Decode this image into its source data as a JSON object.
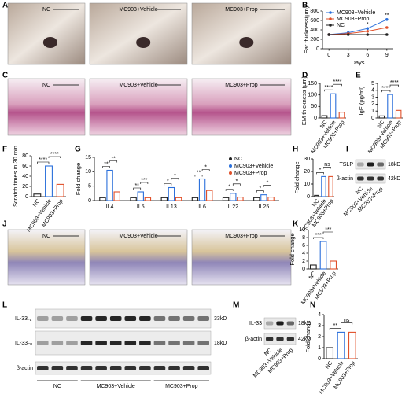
{
  "panel_labels": [
    "A",
    "B",
    "C",
    "D",
    "E",
    "F",
    "G",
    "H",
    "I",
    "J",
    "K",
    "L",
    "M",
    "N"
  ],
  "image_panels": [
    {
      "labels": [
        "NC",
        "MC903+Vehicle",
        "MC903+Prop"
      ]
    },
    {
      "labels": [
        "NC",
        "MC903+Vehicle",
        "MC903+Prop"
      ]
    },
    {
      "labels": [
        "NC",
        "MC903+Vehicle",
        "MC903+Prop"
      ]
    }
  ],
  "chart_data": [
    {
      "type": "line",
      "y_label": "Ear thickness(μm)",
      "x_label": "Days",
      "x": [
        0,
        3,
        6,
        9
      ],
      "xlim": [
        -1,
        10
      ],
      "xticks": [
        0,
        3,
        6,
        9
      ],
      "ylim": [
        0,
        800
      ],
      "yticks": [
        0,
        200,
        400,
        600,
        800
      ],
      "series": [
        {
          "name": "MC903+Vehicle",
          "color": "#2a6fdb",
          "values": [
            300,
            340,
            430,
            620
          ]
        },
        {
          "name": "MC903+Prop",
          "color": "#e0502a",
          "values": [
            300,
            320,
            370,
            450
          ]
        },
        {
          "name": "NC",
          "color": "#222222",
          "values": [
            300,
            300,
            300,
            300
          ]
        }
      ],
      "annotations": [
        {
          "text": "*",
          "x": 6
        },
        {
          "text": "**",
          "x": 9
        }
      ]
    },
    {
      "type": "bar",
      "y_label": "EM thickness (μm)",
      "categories": [
        "NC",
        "MC903+Vehicle",
        "MC903+Prop"
      ],
      "values": [
        10,
        105,
        25
      ],
      "colors": [
        "#222222",
        "#2a6fdb",
        "#e0502a"
      ],
      "ylim": [
        0,
        150
      ],
      "yticks": [
        0,
        50,
        100,
        150
      ],
      "significance": [
        "****",
        "****"
      ]
    },
    {
      "type": "bar",
      "y_label": "IgE (μg/ml)",
      "categories": [
        "NC",
        "MC903+Vehicle",
        "MC903+Prop"
      ],
      "values": [
        0.3,
        3.4,
        1.1
      ],
      "colors": [
        "#222222",
        "#2a6fdb",
        "#e0502a"
      ],
      "ylim": [
        0,
        5
      ],
      "yticks": [
        0,
        1,
        2,
        3,
        4,
        5
      ],
      "significance": [
        "****",
        "****"
      ]
    },
    {
      "type": "bar",
      "y_label": "Scratch times in 30 min",
      "categories": [
        "NC",
        "MC903+Vehicle",
        "MC903+Prop"
      ],
      "values": [
        5,
        60,
        24
      ],
      "colors": [
        "#222222",
        "#2a6fdb",
        "#e0502a"
      ],
      "ylim": [
        0,
        80
      ],
      "yticks": [
        0,
        20,
        40,
        60,
        80
      ],
      "significance": [
        "****",
        "****"
      ]
    },
    {
      "type": "grouped_bar",
      "y_label": "Fold change",
      "categories": [
        "IL4",
        "IL5",
        "IL13",
        "IL6",
        "IL22",
        "IL25"
      ],
      "series": [
        {
          "name": "NC",
          "color": "#222222",
          "values": [
            1,
            1,
            1,
            1,
            1,
            1
          ]
        },
        {
          "name": "MC903+Vehicle",
          "color": "#2a6fdb",
          "values": [
            10.5,
            3,
            4.5,
            7.5,
            2.5,
            2
          ]
        },
        {
          "name": "MC903+Prop",
          "color": "#e0502a",
          "values": [
            3,
            1,
            1,
            3.5,
            1.2,
            1.2
          ]
        }
      ],
      "ylim": [
        0,
        15
      ],
      "yticks": [
        0,
        5,
        10,
        15
      ],
      "significance": [
        [
          "**",
          "**"
        ],
        [
          "**",
          "***"
        ],
        [
          "*",
          "*"
        ],
        [
          "**",
          "*"
        ],
        [
          "*",
          "*"
        ],
        [
          "*",
          "*"
        ]
      ]
    },
    {
      "type": "bar",
      "y_label": "Fold change",
      "categories": [
        "NC",
        "MC903+Vehicle",
        "MC903+Prop"
      ],
      "values": [
        1,
        16,
        16
      ],
      "colors": [
        "#222222",
        "#2a6fdb",
        "#e0502a"
      ],
      "ylim": [
        0,
        30
      ],
      "yticks": [
        0,
        10,
        20,
        30
      ],
      "significance": [
        "*",
        "ns"
      ]
    },
    {
      "type": "bar",
      "y_label": "Fold change",
      "categories": [
        "NC",
        "MC903+Vehicle",
        "MC903+Prop"
      ],
      "values": [
        1,
        7,
        2
      ],
      "colors": [
        "#222222",
        "#2a6fdb",
        "#e0502a"
      ],
      "ylim": [
        0,
        10
      ],
      "yticks": [
        0,
        2,
        4,
        6,
        8,
        10
      ],
      "significance": [
        "***",
        "***"
      ]
    },
    {
      "type": "bar",
      "y_label": "Fold change",
      "categories": [
        "NC",
        "MC903+Vehicle",
        "MC903+Prop"
      ],
      "values": [
        1,
        2.4,
        2.4
      ],
      "colors": [
        "#222222",
        "#2a6fdb",
        "#e0502a"
      ],
      "ylim": [
        0,
        4
      ],
      "yticks": [
        0,
        1,
        2,
        3,
        4
      ],
      "significance": [
        "**",
        "ns"
      ]
    }
  ],
  "blots": [
    {
      "bands": [
        {
          "name": "TSLP",
          "size": "18kD"
        },
        {
          "name": "β-actin",
          "size": "42kD"
        }
      ],
      "lanes": [
        "NC",
        "MC903+Vehicle",
        "MC903+Prop"
      ]
    },
    {
      "bands": [
        {
          "name": "IL-33",
          "subscript": "FL",
          "size": "33kD"
        },
        {
          "name": "IL-33",
          "subscript": "CB",
          "size": "18kD"
        },
        {
          "name": "β-actin"
        }
      ],
      "groups": [
        "NC",
        "MC903+Vehicle",
        "MC903+Prop"
      ]
    },
    {
      "bands": [
        {
          "name": "IL-33",
          "size": "18kD"
        },
        {
          "name": "β-actin",
          "size": "42kD"
        }
      ],
      "lanes": [
        "NC",
        "MC903+Vehicle",
        "MC903+Prop"
      ]
    }
  ]
}
